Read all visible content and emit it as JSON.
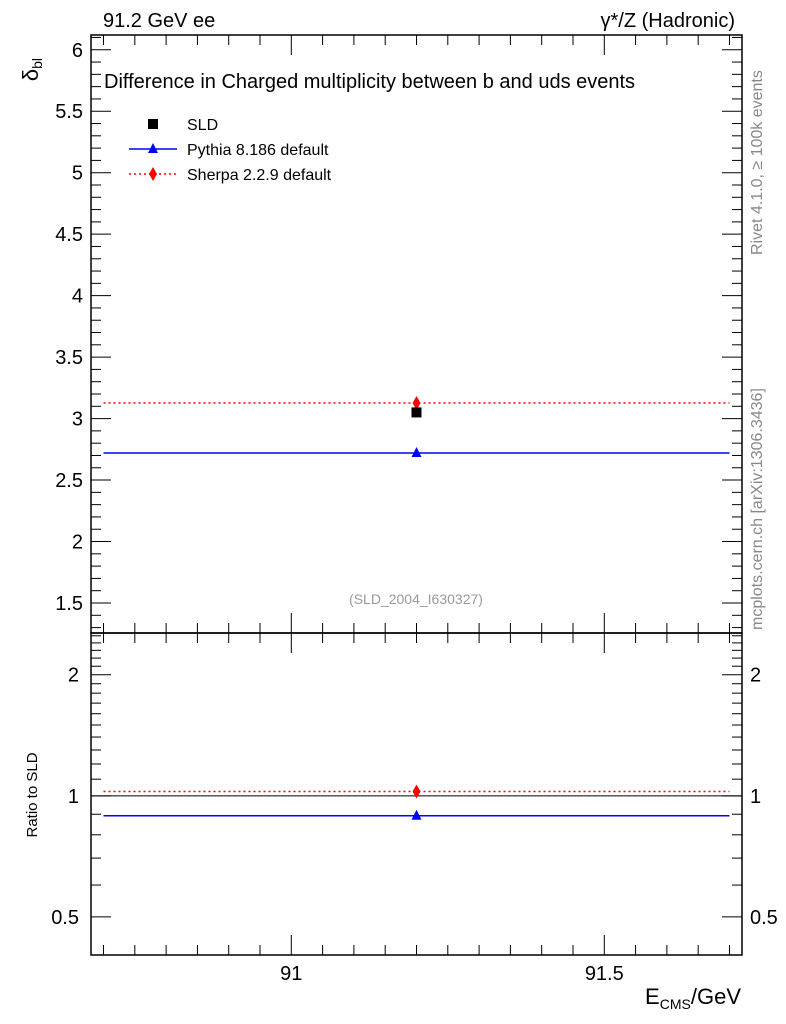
{
  "chart_data": {
    "type": "scatter",
    "top_left_label": "91.2 GeV ee",
    "top_right_label": "γ*/Z (Hadronic)",
    "title": "Difference in Charged multiplicity between b and uds events",
    "ylabel": "δ",
    "ylabel_sub": "bl",
    "ratio_ylabel": "Ratio to SLD",
    "xlabel": "E",
    "xlabel_sub": "CMS",
    "xlabel_unit": "/GeV",
    "side_text_top": "Rivet 4.1.0, ≥ 100k events",
    "side_text_bottom": "mcplots.cern.ch [arXiv:1306.3436]",
    "watermark": "(SLD_2004_I630327)",
    "xlim": [
      90.68,
      91.72
    ],
    "ylim": [
      1.256,
      6.12
    ],
    "ratio_ylim": [
      0.402,
      2.54
    ],
    "ratio_scale": "log",
    "x_ticks": [
      "91",
      "91.5"
    ],
    "y_ticks": [
      "1.5",
      "2",
      "2.5",
      "3",
      "3.5",
      "4",
      "4.5",
      "5",
      "5.5",
      "6"
    ],
    "ratio_ticks": [
      "0.5",
      "1",
      "2"
    ],
    "legend_position": "top-left",
    "series": [
      {
        "name": "SLD",
        "marker": "square",
        "color": "#000000",
        "x": 91.2,
        "y": 3.05,
        "ratio": 1.0
      },
      {
        "name": "Pythia 8.186 default",
        "marker": "triangle",
        "line": "solid",
        "color": "#0000ff",
        "x": 91.2,
        "y": 2.72,
        "xrange": [
          90.7,
          91.7
        ],
        "ratio": 0.892
      },
      {
        "name": "Sherpa 2.2.9 default",
        "marker": "diamond",
        "line": "dotted",
        "color": "#ff0000",
        "x": 91.2,
        "y": 3.127,
        "xrange": [
          90.7,
          91.7
        ],
        "ratio": 1.025
      }
    ]
  }
}
